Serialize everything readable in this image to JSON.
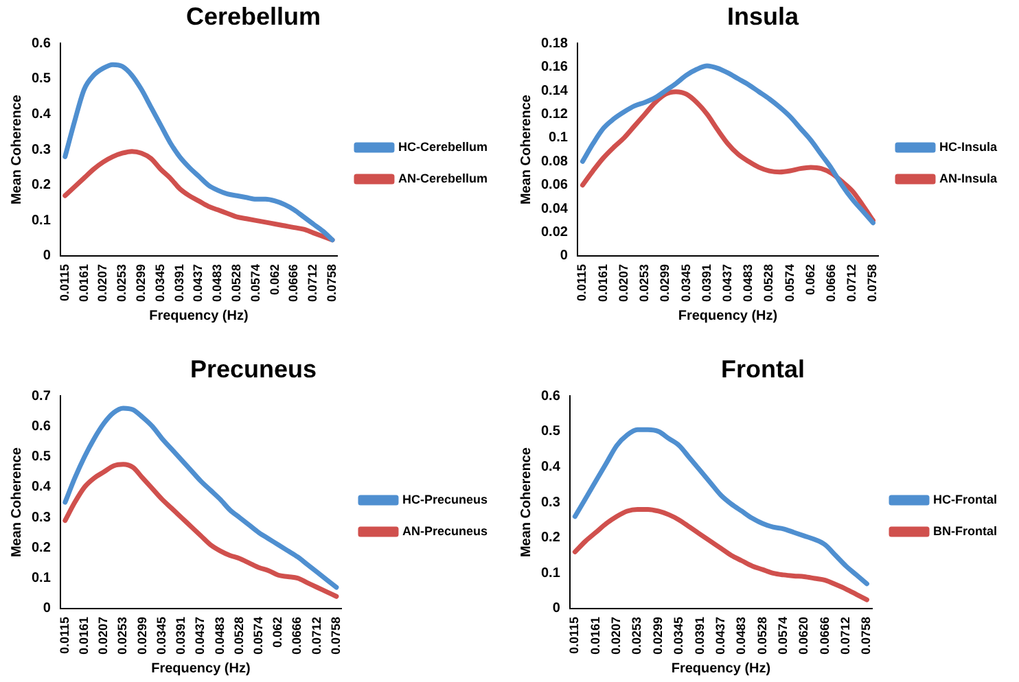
{
  "chart_data": [
    {
      "type": "line",
      "title": "Cerebellum",
      "xlabel": "Frequency (Hz)",
      "ylabel": "Mean Coherence",
      "legend": "right",
      "grid": false,
      "marker": "none",
      "ylim": [
        0,
        0.6
      ],
      "yticks": [
        0,
        0.1,
        0.2,
        0.3,
        0.4,
        0.5,
        0.6
      ],
      "categories": [
        "0.0115",
        null,
        "0.0161",
        null,
        "0.0207",
        null,
        "0.0253",
        null,
        "0.0299",
        null,
        "0.0345",
        null,
        "0.0391",
        null,
        "0.0437",
        null,
        "0.0483",
        null,
        "0.0528",
        null,
        "0.0574",
        null,
        "0.062",
        null,
        "0.0666",
        null,
        "0.0712",
        null,
        "0.0758"
      ],
      "series": [
        {
          "name": "HC-Cerebellum",
          "color": "#4f8fd0",
          "values": [
            0.28,
            0.38,
            0.47,
            0.51,
            0.53,
            0.54,
            0.535,
            0.51,
            0.47,
            0.42,
            0.37,
            0.32,
            0.28,
            0.25,
            0.225,
            0.2,
            0.185,
            0.175,
            0.17,
            0.165,
            0.16,
            0.16,
            0.155,
            0.145,
            0.13,
            0.11,
            0.09,
            0.07,
            0.045
          ]
        },
        {
          "name": "AN-Cerebellum",
          "color": "#d0504d",
          "values": [
            0.17,
            0.195,
            0.22,
            0.245,
            0.265,
            0.28,
            0.29,
            0.295,
            0.29,
            0.275,
            0.245,
            0.22,
            0.19,
            0.17,
            0.155,
            0.14,
            0.13,
            0.12,
            0.11,
            0.105,
            0.1,
            0.095,
            0.09,
            0.085,
            0.08,
            0.075,
            0.065,
            0.055,
            0.045
          ]
        }
      ]
    },
    {
      "type": "line",
      "title": "Insula",
      "xlabel": "Frequency (Hz)",
      "ylabel": "Mean Coherence",
      "legend": "right",
      "grid": false,
      "marker": "none",
      "ylim": [
        0,
        0.18
      ],
      "yticks": [
        0,
        0.02,
        0.04,
        0.06,
        0.08,
        0.1,
        0.12,
        0.14,
        0.16,
        0.18
      ],
      "categories": [
        "0.0115",
        null,
        "0.0161",
        null,
        "0.0207",
        null,
        "0.0253",
        null,
        "0.0299",
        null,
        "0.0345",
        null,
        "0.0391",
        null,
        "0.0437",
        null,
        "0.0483",
        null,
        "0.0528",
        null,
        "0.0574",
        null,
        "0.062",
        null,
        "0.0666",
        null,
        "0.0712",
        null,
        "0.0758"
      ],
      "series": [
        {
          "name": "HC-Insula",
          "color": "#4f8fd0",
          "values": [
            0.08,
            0.095,
            0.108,
            0.116,
            0.122,
            0.127,
            0.13,
            0.134,
            0.14,
            0.146,
            0.153,
            0.158,
            0.161,
            0.159,
            0.155,
            0.15,
            0.145,
            0.139,
            0.133,
            0.126,
            0.118,
            0.108,
            0.098,
            0.086,
            0.074,
            0.06,
            0.048,
            0.038,
            0.028
          ]
        },
        {
          "name": "AN-Insula",
          "color": "#d0504d",
          "values": [
            0.06,
            0.072,
            0.083,
            0.092,
            0.1,
            0.11,
            0.12,
            0.13,
            0.137,
            0.139,
            0.137,
            0.13,
            0.12,
            0.107,
            0.095,
            0.086,
            0.08,
            0.075,
            0.072,
            0.071,
            0.072,
            0.074,
            0.075,
            0.074,
            0.07,
            0.063,
            0.055,
            0.043,
            0.03
          ]
        }
      ]
    },
    {
      "type": "line",
      "title": "Precuneus",
      "xlabel": "Frequency (Hz)",
      "ylabel": "Mean Coherence",
      "legend": "right",
      "grid": false,
      "marker": "none",
      "ylim": [
        0,
        0.7
      ],
      "yticks": [
        0,
        0.1,
        0.2,
        0.3,
        0.4,
        0.5,
        0.6,
        0.7
      ],
      "categories": [
        "0.0115",
        null,
        "0.0161",
        null,
        "0.0207",
        null,
        "0.0253",
        null,
        "0.0299",
        null,
        "0.0345",
        null,
        "0.0391",
        null,
        "0.0437",
        null,
        "0.0483",
        null,
        "0.0528",
        null,
        "0.0574",
        null,
        "0.062",
        null,
        "0.0666",
        null,
        "0.0712",
        null,
        "0.0758"
      ],
      "series": [
        {
          "name": "HC-Precuneus",
          "color": "#4f8fd0",
          "values": [
            0.35,
            0.43,
            0.5,
            0.56,
            0.61,
            0.645,
            0.66,
            0.655,
            0.63,
            0.6,
            0.56,
            0.525,
            0.49,
            0.455,
            0.42,
            0.39,
            0.36,
            0.325,
            0.3,
            0.275,
            0.25,
            0.23,
            0.21,
            0.19,
            0.17,
            0.145,
            0.12,
            0.095,
            0.07
          ]
        },
        {
          "name": "AN-Precuneus",
          "color": "#d0504d",
          "values": [
            0.29,
            0.35,
            0.4,
            0.43,
            0.45,
            0.47,
            0.475,
            0.465,
            0.43,
            0.395,
            0.36,
            0.33,
            0.3,
            0.27,
            0.24,
            0.21,
            0.19,
            0.175,
            0.165,
            0.15,
            0.135,
            0.125,
            0.11,
            0.105,
            0.1,
            0.085,
            0.07,
            0.055,
            0.04
          ]
        }
      ]
    },
    {
      "type": "line",
      "title": "Frontal",
      "xlabel": "Frequency (Hz)",
      "ylabel": "Mean Coherence",
      "legend": "right",
      "grid": false,
      "marker": "none",
      "ylim": [
        0,
        0.6
      ],
      "yticks": [
        0,
        0.1,
        0.2,
        0.3,
        0.4,
        0.5,
        0.6
      ],
      "categories": [
        "0.0115",
        null,
        "0.0161",
        null,
        "0.0207",
        null,
        "0.0253",
        null,
        "0.0299",
        null,
        "0.0345",
        null,
        "0.0391",
        null,
        "0.0437",
        null,
        "0.0483",
        null,
        "0.0528",
        null,
        "0.0574",
        null,
        "0.0620",
        null,
        "0.0666",
        null,
        "0.0712",
        null,
        "0.0758"
      ],
      "series": [
        {
          "name": "HC-Frontal",
          "color": "#4f8fd0",
          "values": [
            0.26,
            0.31,
            0.36,
            0.41,
            0.46,
            0.49,
            0.505,
            0.505,
            0.5,
            0.48,
            0.46,
            0.425,
            0.39,
            0.355,
            0.32,
            0.295,
            0.275,
            0.255,
            0.24,
            0.23,
            0.225,
            0.215,
            0.205,
            0.195,
            0.18,
            0.15,
            0.12,
            0.095,
            0.07
          ]
        },
        {
          "name": "BN-Frontal",
          "color": "#d0504d",
          "values": [
            0.16,
            0.19,
            0.215,
            0.24,
            0.26,
            0.275,
            0.28,
            0.28,
            0.275,
            0.265,
            0.25,
            0.23,
            0.21,
            0.19,
            0.17,
            0.15,
            0.135,
            0.12,
            0.11,
            0.1,
            0.095,
            0.092,
            0.09,
            0.085,
            0.08,
            0.068,
            0.055,
            0.04,
            0.025
          ]
        }
      ]
    }
  ]
}
